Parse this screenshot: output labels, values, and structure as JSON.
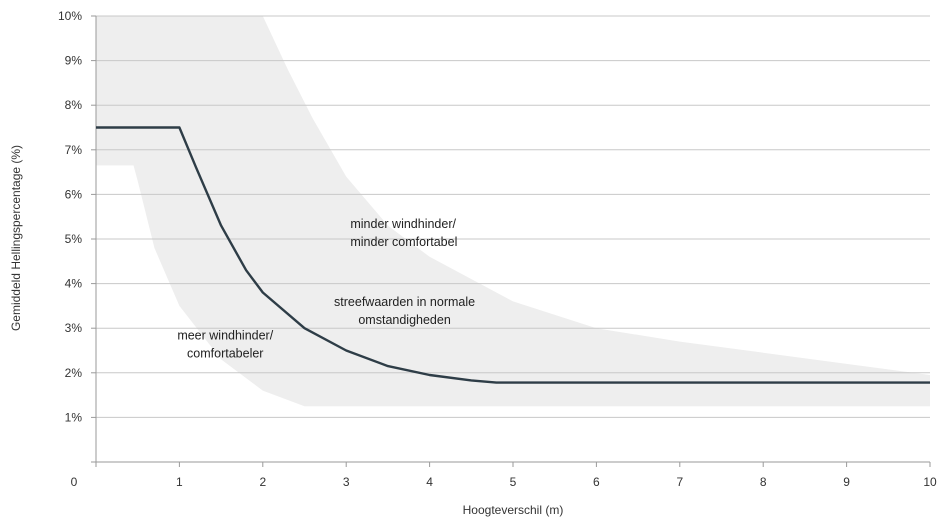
{
  "chart_data": {
    "type": "area",
    "xlabel": "Hoogteverschil (m)",
    "ylabel": "Gemiddeld Hellingspercentage (%)",
    "xlim": [
      0,
      10
    ],
    "ylim": [
      0,
      10
    ],
    "x_ticks": [
      0,
      1,
      2,
      3,
      4,
      5,
      6,
      7,
      8,
      9,
      10
    ],
    "x_tick_labels": [
      "0",
      "1",
      "2",
      "3",
      "4",
      "5",
      "6",
      "7",
      "8",
      "9",
      "10"
    ],
    "y_ticks": [
      1,
      2,
      3,
      4,
      5,
      6,
      7,
      8,
      9,
      10
    ],
    "y_tick_labels": [
      "1%",
      "2%",
      "3%",
      "4%",
      "5%",
      "6%",
      "7%",
      "8%",
      "9%",
      "10%"
    ],
    "grid": "horizontal",
    "colors": {
      "band": "#eeeeee",
      "line": "#2e3d47",
      "grid": "#c8c8c8"
    },
    "band": {
      "upper": {
        "x": [
          0,
          2,
          2.3,
          2.6,
          3,
          3.5,
          4,
          5,
          6,
          7,
          8,
          9,
          10
        ],
        "y": [
          10,
          10,
          8.8,
          7.7,
          6.4,
          5.3,
          4.6,
          3.6,
          3.0,
          2.7,
          2.45,
          2.2,
          1.95
        ]
      },
      "lower": {
        "x": [
          0,
          0.45,
          0.5,
          0.7,
          1.0,
          1.5,
          2.0,
          2.5,
          3,
          4,
          5,
          6,
          7,
          8,
          9,
          10
        ],
        "y": [
          6.65,
          6.65,
          6.3,
          4.8,
          3.5,
          2.3,
          1.6,
          1.25,
          1.25,
          1.25,
          1.25,
          1.25,
          1.25,
          1.25,
          1.25,
          1.25
        ]
      }
    },
    "series": [
      {
        "x": [
          0,
          1.0,
          1.2,
          1.5,
          1.8,
          2.0,
          2.5,
          3.0,
          3.5,
          4.0,
          4.5,
          4.8,
          5,
          6,
          7,
          8,
          9,
          10
        ],
        "y": [
          7.5,
          7.5,
          6.6,
          5.3,
          4.3,
          3.8,
          3.0,
          2.5,
          2.15,
          1.95,
          1.83,
          1.78,
          1.78,
          1.78,
          1.78,
          1.78,
          1.78,
          1.78
        ]
      }
    ],
    "annotations": [
      {
        "lines": [
          "minder windhinder/",
          "minder comfortabel"
        ],
        "x": 3.05,
        "y": 5.25,
        "anchor": "start"
      },
      {
        "lines": [
          "streefwaarden in normale",
          "omstandigheden"
        ],
        "x": 3.7,
        "y": 3.5,
        "anchor": "middle"
      },
      {
        "lines": [
          "meer windhinder/",
          "comfortabeler"
        ],
        "x": 1.55,
        "y": 2.75,
        "anchor": "middle"
      }
    ]
  }
}
